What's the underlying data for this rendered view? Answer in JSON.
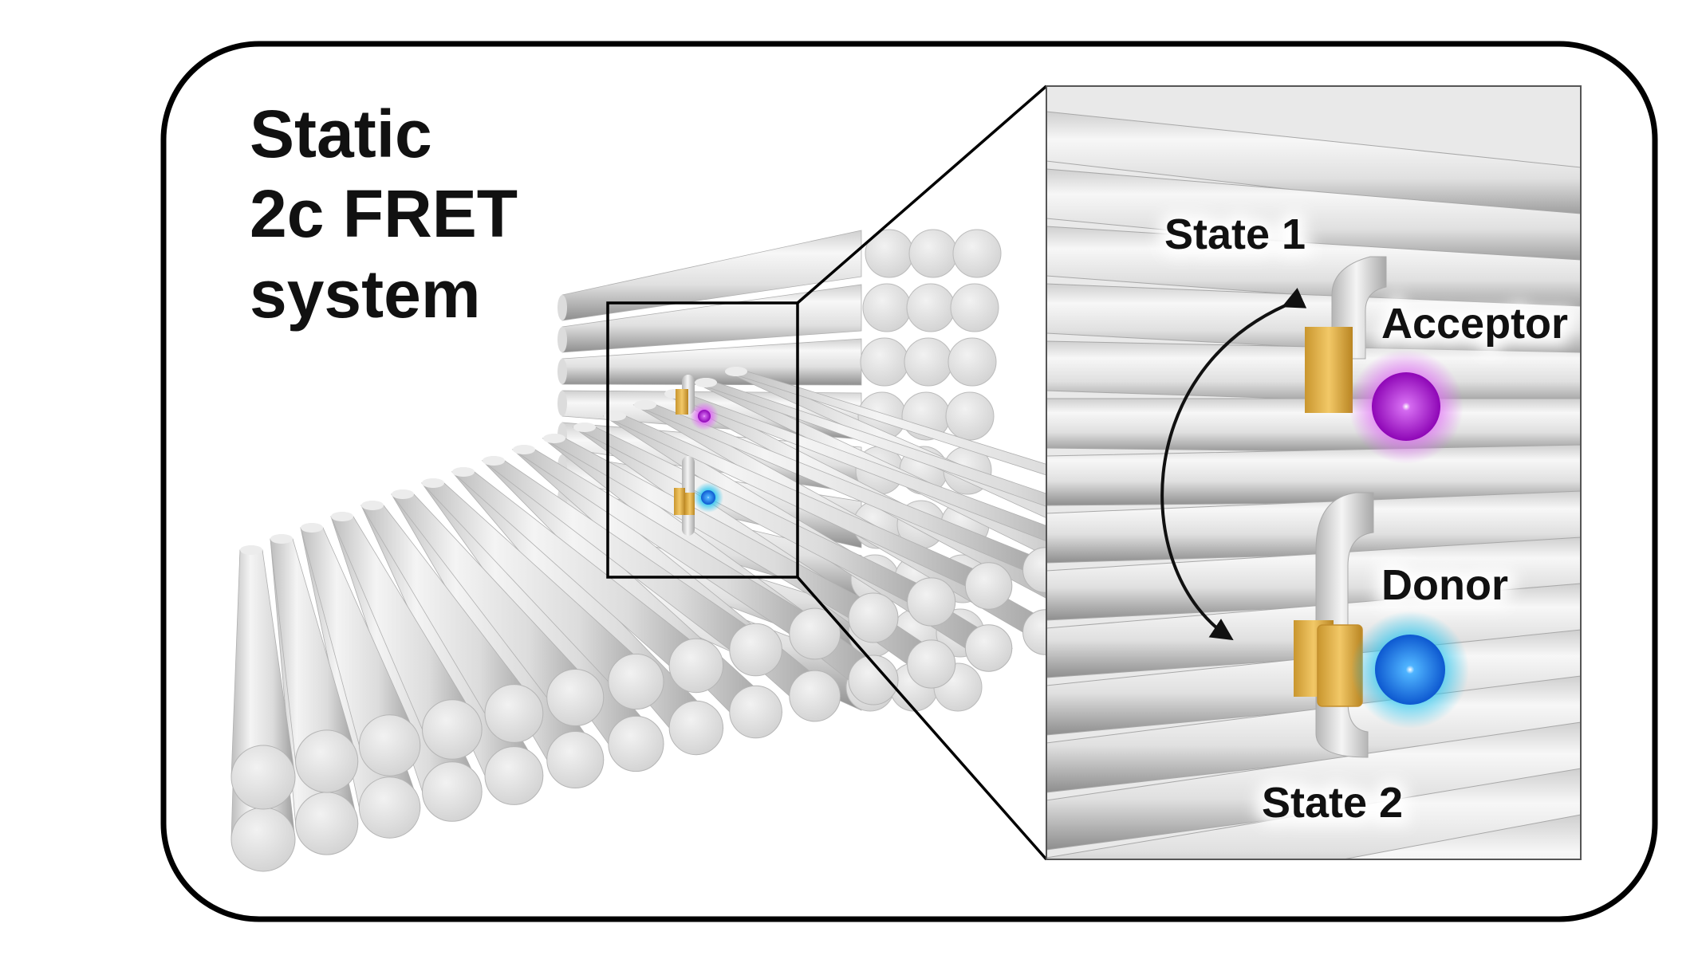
{
  "title": [
    "Static",
    "2c FRET",
    "system"
  ],
  "labels": {
    "state1": "State 1",
    "state2": "State 2",
    "acceptor": "Acceptor",
    "donor": "Donor"
  },
  "colors": {
    "frame": "#000000",
    "tube": "#d9d9d9",
    "linker": "#e6b84f",
    "acceptor": "#b20fd6",
    "acceptor_glow": "#e070f5",
    "donor": "#1a7de8",
    "donor_glow": "#2ec7f0"
  }
}
